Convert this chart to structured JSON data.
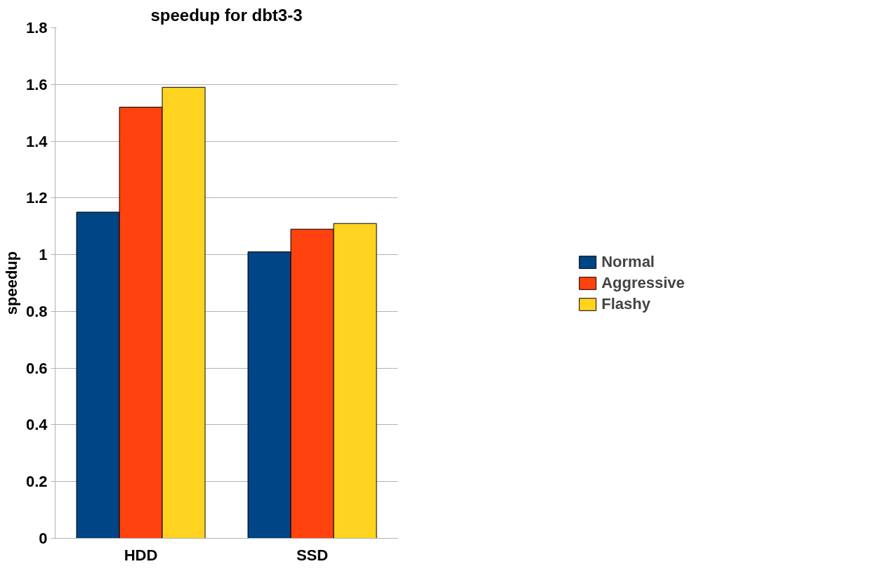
{
  "chart_data": {
    "type": "bar",
    "title": "speedup for dbt3-3",
    "ylabel": "speedup",
    "categories": [
      "HDD",
      "SSD"
    ],
    "series": [
      {
        "name": "Normal",
        "color": "#004586",
        "values": [
          1.15,
          1.01
        ]
      },
      {
        "name": "Aggressive",
        "color": "#ff420e",
        "values": [
          1.52,
          1.09
        ]
      },
      {
        "name": "Flashy",
        "color": "#ffd320",
        "values": [
          1.59,
          1.11
        ]
      }
    ],
    "ylim": [
      0,
      1.8
    ],
    "yticks": [
      0,
      {
        "value": 0.2,
        "label": "0.2"
      },
      {
        "value": 0.4,
        "label": "0.4"
      },
      {
        "value": 0.6,
        "label": "0.6"
      },
      {
        "value": 0.8,
        "label": "0.8"
      },
      1,
      {
        "value": 1.2,
        "label": "1.2"
      },
      {
        "value": 1.4,
        "label": "1.4"
      },
      {
        "value": 1.6,
        "label": "1.6"
      },
      {
        "value": 1.8,
        "label": "1.8"
      }
    ],
    "grid": "y",
    "legend": "right"
  }
}
